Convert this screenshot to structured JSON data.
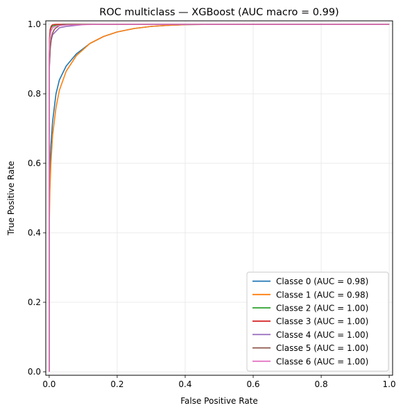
{
  "chart_data": {
    "type": "line",
    "title": "ROC multiclass — XGBoost (AUC macro = 0.99)",
    "xlabel": "False Positive Rate",
    "ylabel": "True Positive Rate",
    "xlim": [
      -0.01,
      1.01
    ],
    "ylim": [
      -0.01,
      1.01
    ],
    "xticks": [
      "0.0",
      "0.2",
      "0.4",
      "0.6",
      "0.8",
      "1.0"
    ],
    "yticks": [
      "0.0",
      "0.2",
      "0.4",
      "0.6",
      "0.8",
      "1.0"
    ],
    "grid": true,
    "legend_position": "lower-right",
    "series": [
      {
        "name": "Classe 0 (AUC = 0.98)",
        "color": "#1f77b4",
        "x": [
          0,
          0,
          0.002,
          0.005,
          0.01,
          0.02,
          0.03,
          0.05,
          0.08,
          0.12,
          0.16,
          0.2,
          0.25,
          0.3,
          0.35,
          0.4,
          0.5,
          0.7,
          1.0
        ],
        "y": [
          0,
          0.45,
          0.58,
          0.65,
          0.72,
          0.8,
          0.84,
          0.88,
          0.915,
          0.945,
          0.965,
          0.978,
          0.988,
          0.994,
          0.997,
          0.999,
          1.0,
          1.0,
          1.0
        ]
      },
      {
        "name": "Classe 1 (AUC = 0.98)",
        "color": "#ff7f0e",
        "x": [
          0,
          0,
          0.002,
          0.005,
          0.01,
          0.02,
          0.03,
          0.05,
          0.08,
          0.12,
          0.16,
          0.2,
          0.25,
          0.3,
          0.35,
          0.4,
          0.5,
          0.7,
          1.0
        ],
        "y": [
          0,
          0.4,
          0.52,
          0.6,
          0.68,
          0.76,
          0.81,
          0.865,
          0.91,
          0.945,
          0.965,
          0.978,
          0.988,
          0.994,
          0.997,
          0.999,
          1.0,
          1.0,
          1.0
        ]
      },
      {
        "name": "Classe 2 (AUC = 1.00)",
        "color": "#2ca02c",
        "x": [
          0,
          0,
          0.002,
          0.005,
          0.01,
          0.02,
          0.04,
          1.0
        ],
        "y": [
          0,
          0.9,
          0.97,
          0.99,
          0.995,
          0.998,
          1.0,
          1.0
        ]
      },
      {
        "name": "Classe 3 (AUC = 1.00)",
        "color": "#d62728",
        "x": [
          0,
          0,
          0.001,
          0.003,
          0.006,
          0.01,
          0.02,
          1.0
        ],
        "y": [
          0,
          0.88,
          0.96,
          0.985,
          0.995,
          0.999,
          1.0,
          1.0
        ]
      },
      {
        "name": "Classe 4 (AUC = 1.00)",
        "color": "#9467bd",
        "x": [
          0,
          0,
          0.003,
          0.006,
          0.01,
          0.02,
          0.03,
          0.05,
          0.08,
          0.1,
          0.12,
          1.0
        ],
        "y": [
          0,
          0.86,
          0.93,
          0.955,
          0.97,
          0.98,
          0.99,
          0.994,
          0.997,
          0.999,
          1.0,
          1.0
        ]
      },
      {
        "name": "Classe 5 (AUC = 1.00)",
        "color": "#8c564b",
        "x": [
          0,
          0,
          0.003,
          0.006,
          0.01,
          0.015,
          0.02,
          0.03,
          0.04,
          1.0
        ],
        "y": [
          0,
          0.87,
          0.93,
          0.96,
          0.975,
          0.985,
          0.99,
          0.996,
          1.0,
          1.0
        ]
      },
      {
        "name": "Classe 6 (AUC = 1.00)",
        "color": "#e377c2",
        "x": [
          0,
          0,
          0.002,
          0.005,
          0.01,
          0.02,
          0.05,
          0.1,
          0.16,
          1.0
        ],
        "y": [
          0,
          0.91,
          0.96,
          0.98,
          0.99,
          0.995,
          0.998,
          0.999,
          1.0,
          1.0
        ]
      }
    ]
  }
}
